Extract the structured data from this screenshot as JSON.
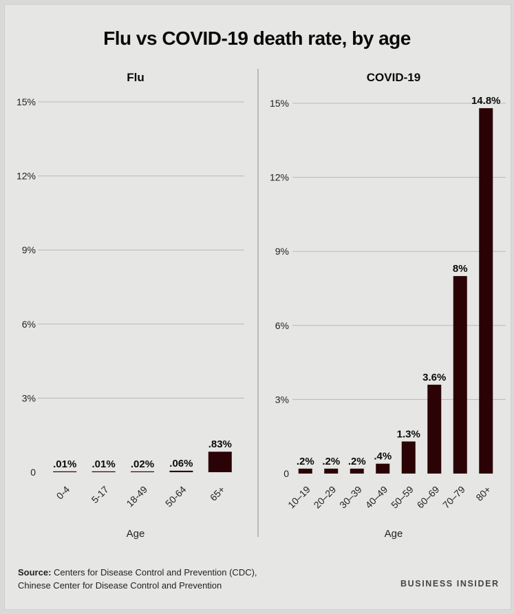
{
  "title": "Flu vs COVID-19 death rate, by age",
  "chart_data": [
    {
      "type": "bar",
      "title": "Flu",
      "xlabel": "Age",
      "ylabel": "",
      "ylim": [
        0,
        15
      ],
      "yticks": [
        0,
        3,
        6,
        9,
        12,
        15
      ],
      "ytick_labels": [
        "0",
        "3%",
        "6%",
        "9%",
        "12%",
        "15%"
      ],
      "categories": [
        "0-4",
        "5-17",
        "18-49",
        "50-64",
        "65+"
      ],
      "values": [
        0.01,
        0.01,
        0.02,
        0.06,
        0.83
      ],
      "value_labels": [
        ".01%",
        ".01%",
        ".02%",
        ".06%",
        ".83%"
      ],
      "grid": true,
      "bar_color": "#2b0306"
    },
    {
      "type": "bar",
      "title": "COVID-19",
      "xlabel": "Age",
      "ylabel": "",
      "ylim": [
        0,
        15
      ],
      "yticks": [
        0,
        3,
        6,
        9,
        12,
        15
      ],
      "ytick_labels": [
        "0",
        "3%",
        "6%",
        "9%",
        "12%",
        "15%"
      ],
      "categories": [
        "10–19",
        "20–29",
        "30–39",
        "40–49",
        "50–59",
        "60–69",
        "70–79",
        "80+"
      ],
      "values": [
        0.2,
        0.2,
        0.2,
        0.4,
        1.3,
        3.6,
        8,
        14.8
      ],
      "value_labels": [
        ".2%",
        ".2%",
        ".2%",
        ".4%",
        "1.3%",
        "3.6%",
        "8%",
        "14.8%"
      ],
      "grid": true,
      "bar_color": "#2b0306"
    }
  ],
  "footer": {
    "source_label": "Source:",
    "source_line1": "Centers for Disease Control and Prevention (CDC),",
    "source_line2": "Chinese Center for Disease Control and Prevention",
    "brand": "BUSINESS INSIDER"
  }
}
